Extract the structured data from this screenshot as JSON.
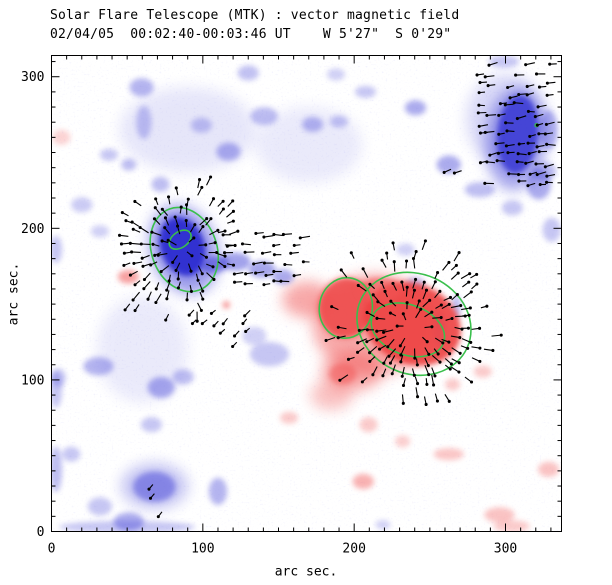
{
  "title": "Solar Flare Telescope (MTK) : vector magnetic field",
  "subtitle": "02/04/05  00:02:40-00:03:46 UT    W 5'27\"  S 0'29\"",
  "colors": {
    "background": "#ffffff",
    "negative": "#4646d8",
    "negative_core": "#2a2ad0",
    "positive": "#f15555",
    "positive_core": "#ee4040",
    "contour": "#3abf4c",
    "vector": "#000000",
    "axis": "#000000"
  },
  "chart_data": {
    "type": "heatmap",
    "subtype": "vector-magnetogram",
    "title": "Solar Flare Telescope (MTK) : vector magnetic field",
    "xlabel": "arc sec.",
    "ylabel": "arc sec.",
    "units": "arc sec",
    "xlim": [
      0,
      337
    ],
    "ylim": [
      0,
      314
    ],
    "xticks": [
      0,
      100,
      200,
      300
    ],
    "yticks": [
      0,
      100,
      200,
      300
    ],
    "minor_tick_step": 10,
    "grid": false,
    "legend": "none",
    "polarity": {
      "negative": "blue",
      "positive": "red"
    },
    "blob_fields": [
      "polarity",
      "x",
      "y",
      "rx",
      "ry",
      "rot_deg",
      "opacity",
      "layer",
      "color_override"
    ],
    "blobs": [
      [
        "neg",
        87.5,
        186,
        22,
        30,
        -20,
        0.55,
        "soft"
      ],
      [
        "neg",
        307,
        259,
        20,
        34,
        5,
        0.5,
        "soft"
      ],
      [
        "neg",
        68,
        30,
        22,
        15,
        0,
        0.32,
        "soft"
      ],
      [
        "neg",
        300,
        272,
        26,
        30,
        0,
        0.2,
        "soft"
      ],
      [
        "neg",
        90,
        265,
        45,
        28,
        0,
        0.13,
        "soft"
      ],
      [
        "neg",
        170,
        255,
        35,
        25,
        0,
        0.11,
        "soft"
      ],
      [
        "neg",
        60,
        120,
        30,
        35,
        0,
        0.11,
        "soft"
      ],
      [
        "pos",
        213.5,
        136.5,
        41,
        33,
        0,
        0.5,
        "soft"
      ],
      [
        "pos",
        169,
        153,
        16.5,
        12,
        0,
        0.5,
        "soft"
      ],
      [
        "pos",
        198.5,
        105.5,
        20,
        13,
        0,
        0.5,
        "soft"
      ],
      [
        "pos",
        185,
        90,
        14,
        10,
        0,
        0.35,
        "soft"
      ],
      [
        "neg",
        86.5,
        188,
        14.5,
        20,
        -20,
        0.93,
        "med",
        "#2a2ad0"
      ],
      [
        "neg",
        108,
        176,
        9,
        5.5,
        -10,
        0.62,
        "med"
      ],
      [
        "neg",
        121.5,
        178,
        10,
        6,
        0,
        0.5,
        "med"
      ],
      [
        "neg",
        139,
        173,
        9,
        5.5,
        0,
        0.48,
        "med"
      ],
      [
        "neg",
        153,
        168,
        7,
        5,
        0,
        0.45,
        "med"
      ],
      [
        "neg",
        72,
        229,
        6,
        5,
        0,
        0.35,
        "med"
      ],
      [
        "neg",
        61,
        270,
        5,
        11,
        0,
        0.3,
        "med"
      ],
      [
        "neg",
        59.5,
        293,
        8,
        6,
        0,
        0.4,
        "med"
      ],
      [
        "neg",
        99,
        268,
        7,
        5,
        0,
        0.3,
        "med"
      ],
      [
        "neg",
        117,
        250.5,
        8,
        6,
        0,
        0.42,
        "med"
      ],
      [
        "neg",
        140.5,
        274,
        9,
        6,
        0,
        0.35,
        "med"
      ],
      [
        "neg",
        130,
        302.5,
        7,
        5,
        0,
        0.33,
        "med"
      ],
      [
        "neg",
        38,
        248.5,
        6,
        4,
        0,
        0.3,
        "med"
      ],
      [
        "neg",
        51,
        242,
        5,
        4,
        0,
        0.35,
        "med"
      ],
      [
        "neg",
        20,
        215.5,
        7,
        5,
        0,
        0.28,
        "med"
      ],
      [
        "neg",
        32,
        198,
        6,
        4,
        0,
        0.25,
        "med"
      ],
      [
        "neg",
        3,
        186,
        4,
        9,
        0,
        0.3,
        "med"
      ],
      [
        "neg",
        3,
        93.5,
        4,
        12,
        0,
        0.3,
        "med"
      ],
      [
        "neg",
        3,
        41,
        4,
        15,
        0,
        0.35,
        "med"
      ],
      [
        "neg",
        144,
        117,
        13,
        8,
        0,
        0.3,
        "med"
      ],
      [
        "neg",
        134,
        129,
        8,
        6,
        0,
        0.25,
        "med"
      ],
      [
        "neg",
        308,
        262,
        13.5,
        26,
        5,
        0.88,
        "med",
        "#3b3bd4"
      ],
      [
        "neg",
        322,
        229,
        8,
        10,
        0,
        0.45,
        "med"
      ],
      [
        "neg",
        328.5,
        265,
        6,
        13,
        0,
        0.4,
        "med"
      ],
      [
        "neg",
        299,
        310,
        10,
        4,
        0,
        0.3,
        "med"
      ],
      [
        "neg",
        262.5,
        242,
        8,
        6,
        0,
        0.45,
        "med"
      ],
      [
        "neg",
        283,
        225.5,
        10,
        5,
        0,
        0.35,
        "med"
      ],
      [
        "neg",
        304.5,
        213.5,
        7,
        5,
        0,
        0.3,
        "med"
      ],
      [
        "neg",
        240.5,
        279.5,
        7,
        5,
        0,
        0.45,
        "med"
      ],
      [
        "neg",
        207.5,
        290,
        7,
        4,
        0,
        0.3,
        "med"
      ],
      [
        "neg",
        188,
        301.5,
        6,
        4,
        0,
        0.25,
        "med"
      ],
      [
        "neg",
        190,
        270.5,
        6,
        4,
        0,
        0.3,
        "med"
      ],
      [
        "neg",
        172.5,
        268.5,
        7,
        5,
        0,
        0.38,
        "med"
      ],
      [
        "neg",
        234,
        186,
        6,
        4,
        0,
        0.25,
        "med"
      ],
      [
        "neg",
        240.5,
        163,
        6,
        5,
        0,
        0.3,
        "med"
      ],
      [
        "neg",
        256.5,
        133,
        4,
        12,
        0,
        0.4,
        "med"
      ],
      [
        "neg",
        267.5,
        148,
        3,
        8,
        0,
        0.35,
        "med"
      ],
      [
        "neg",
        325.5,
        237.5,
        8,
        6,
        0,
        0.35,
        "med"
      ],
      [
        "neg",
        330.5,
        199,
        6,
        8,
        0,
        0.3,
        "med"
      ],
      [
        "neg",
        31,
        109,
        10,
        6,
        0,
        0.4,
        "med"
      ],
      [
        "neg",
        72.5,
        95,
        9,
        7,
        0,
        0.45,
        "med"
      ],
      [
        "neg",
        87,
        102,
        7,
        5,
        0,
        0.35,
        "med"
      ],
      [
        "neg",
        4.5,
        101.5,
        5,
        6,
        0,
        0.3,
        "med"
      ],
      [
        "neg",
        66,
        70.5,
        7,
        5,
        0,
        0.3,
        "med"
      ],
      [
        "neg",
        68,
        29.5,
        14,
        10,
        0,
        0.5,
        "med"
      ],
      [
        "neg",
        51,
        6.5,
        10,
        6,
        0,
        0.45,
        "med"
      ],
      [
        "neg",
        110,
        26.5,
        6,
        9,
        0,
        0.4,
        "med"
      ],
      [
        "neg",
        13,
        51,
        6,
        5,
        0,
        0.3,
        "med"
      ],
      [
        "neg",
        32,
        16.5,
        8,
        6,
        0,
        0.3,
        "med"
      ],
      [
        "neg",
        50,
        3,
        45,
        4,
        0,
        0.3,
        "med"
      ],
      [
        "neg",
        219,
        4.5,
        5,
        3,
        0,
        0.25,
        "med"
      ],
      [
        "pos",
        194.5,
        147.5,
        18,
        20,
        8,
        0.88,
        "med",
        "#ee4848"
      ],
      [
        "pos",
        238.5,
        137,
        33,
        26.5,
        24,
        0.9,
        "med",
        "#ee4040"
      ],
      [
        "pos",
        217,
        159.5,
        15,
        8,
        0,
        0.6,
        "med"
      ],
      [
        "pos",
        192.5,
        104,
        9,
        7,
        0,
        0.55,
        "med"
      ],
      [
        "pos",
        50.8,
        168,
        7,
        4.5,
        0,
        0.55,
        "med"
      ],
      [
        "pos",
        6.5,
        260,
        6,
        5,
        0,
        0.25,
        "med"
      ],
      [
        "pos",
        115.5,
        149.5,
        2.5,
        2.5,
        0,
        0.6,
        "med"
      ],
      [
        "pos",
        157,
        75,
        6,
        4,
        0,
        0.3,
        "med"
      ],
      [
        "pos",
        285,
        105.5,
        6,
        4,
        0,
        0.3,
        "med"
      ],
      [
        "pos",
        265,
        97,
        5,
        4,
        0,
        0.3,
        "med"
      ],
      [
        "pos",
        209.5,
        70.5,
        6,
        5,
        0,
        0.3,
        "med"
      ],
      [
        "pos",
        232,
        59.5,
        5,
        4,
        0,
        0.28,
        "med"
      ],
      [
        "pos",
        262.5,
        51,
        10,
        4,
        0,
        0.33,
        "med"
      ],
      [
        "pos",
        206,
        33,
        7,
        5,
        0,
        0.45,
        "med"
      ],
      [
        "pos",
        328.5,
        41,
        7,
        5,
        0,
        0.35,
        "med"
      ],
      [
        "pos",
        296,
        11,
        10,
        5,
        0,
        0.35,
        "med"
      ],
      [
        "pos",
        304,
        3.5,
        12,
        4,
        0,
        0.3,
        "med"
      ]
    ],
    "contour_fields": [
      "x",
      "y",
      "rx",
      "ry",
      "rot_deg"
    ],
    "contours": [
      [
        87.7,
        186,
        21.5,
        28.5,
        -20
      ],
      [
        85,
        192.5,
        8,
        5.2,
        -35
      ],
      [
        194.5,
        147.5,
        17.5,
        20,
        8
      ],
      [
        239.5,
        137,
        38.5,
        33,
        24
      ],
      [
        235.5,
        133,
        25,
        16.5,
        20
      ]
    ],
    "contour_speck": [
      320.5,
      268,
      1.6
    ],
    "vector_clusters": [
      {
        "pattern": "radial",
        "cx": 87,
        "cy": 187,
        "x0": 52,
        "x1": 122,
        "y0": 142,
        "y1": 228,
        "step": 6.4,
        "len": 5.4,
        "jitter": 15,
        "density": 0.85,
        "rmax": 52
      },
      {
        "pattern": "uniform",
        "angle": 182,
        "x0": 120,
        "x1": 172,
        "y0": 158,
        "y1": 196,
        "step": 6.4,
        "len": 5.2,
        "jitter": 9,
        "density": 0.6
      },
      {
        "pattern": "radial",
        "cx": 236,
        "cy": 136,
        "x0": 163,
        "x1": 292,
        "y0": 86,
        "y1": 192,
        "step": 6.4,
        "len": 5.4,
        "jitter": 15,
        "density": 0.85,
        "rmax": 60
      },
      {
        "pattern": "uniform",
        "angle": 186,
        "x0": 287,
        "x1": 333,
        "y0": 230,
        "y1": 308,
        "step": 6.5,
        "len": 5,
        "jitter": 13,
        "density": 0.7
      },
      {
        "pattern": "uniform",
        "angle": 224,
        "x0": 95,
        "x1": 130,
        "y0": 124,
        "y1": 154,
        "step": 7,
        "len": 4.3,
        "jitter": 10,
        "density": 0.5
      }
    ],
    "extra_vector_fields": [
      "x",
      "y",
      "angle_deg",
      "len"
    ],
    "extra_vectors": [
      [
        264,
        239,
        205,
        5
      ],
      [
        271,
        238,
        198,
        5
      ],
      [
        67,
        31,
        230,
        4
      ],
      [
        68,
        25,
        230,
        4
      ],
      [
        73,
        13,
        233,
        4
      ]
    ]
  }
}
